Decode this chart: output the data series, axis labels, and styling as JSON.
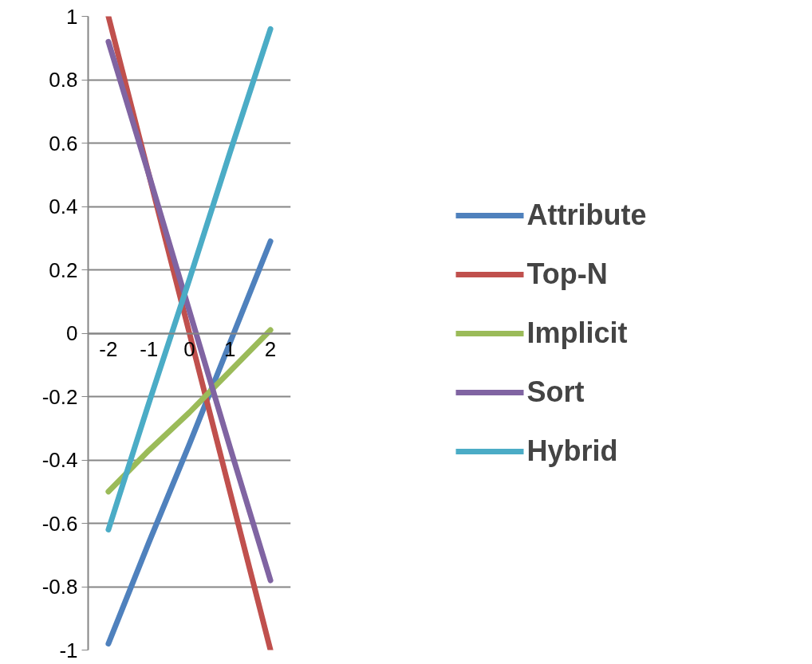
{
  "chart_data": {
    "type": "line",
    "categories": [
      "-2",
      "-1",
      "0",
      "1",
      "2"
    ],
    "series": [
      {
        "name": "Attribute",
        "color": "#4f81bd",
        "values": [
          -0.98,
          -0.66,
          -0.35,
          -0.03,
          0.29
        ]
      },
      {
        "name": "Top-N",
        "color": "#c0504d",
        "values": [
          1,
          0.5,
          0,
          -0.5,
          -1
        ]
      },
      {
        "name": "Implicit",
        "color": "#9bbb59",
        "values": [
          -0.5,
          -0.37,
          -0.25,
          -0.12,
          0.01
        ]
      },
      {
        "name": "Sort",
        "color": "#8064a2",
        "values": [
          0.92,
          0.5,
          0.07,
          -0.36,
          -0.78
        ]
      },
      {
        "name": "Hybrid",
        "color": "#4bacc6",
        "values": [
          -0.62,
          -0.22,
          0.17,
          0.57,
          0.96
        ]
      }
    ],
    "ylim": [
      -1,
      1
    ],
    "yticks": [
      -1,
      -0.8,
      -0.6,
      -0.4,
      -0.2,
      0,
      0.2,
      0.4,
      0.6,
      0.8,
      1
    ],
    "grid": "y",
    "legend": "right"
  }
}
